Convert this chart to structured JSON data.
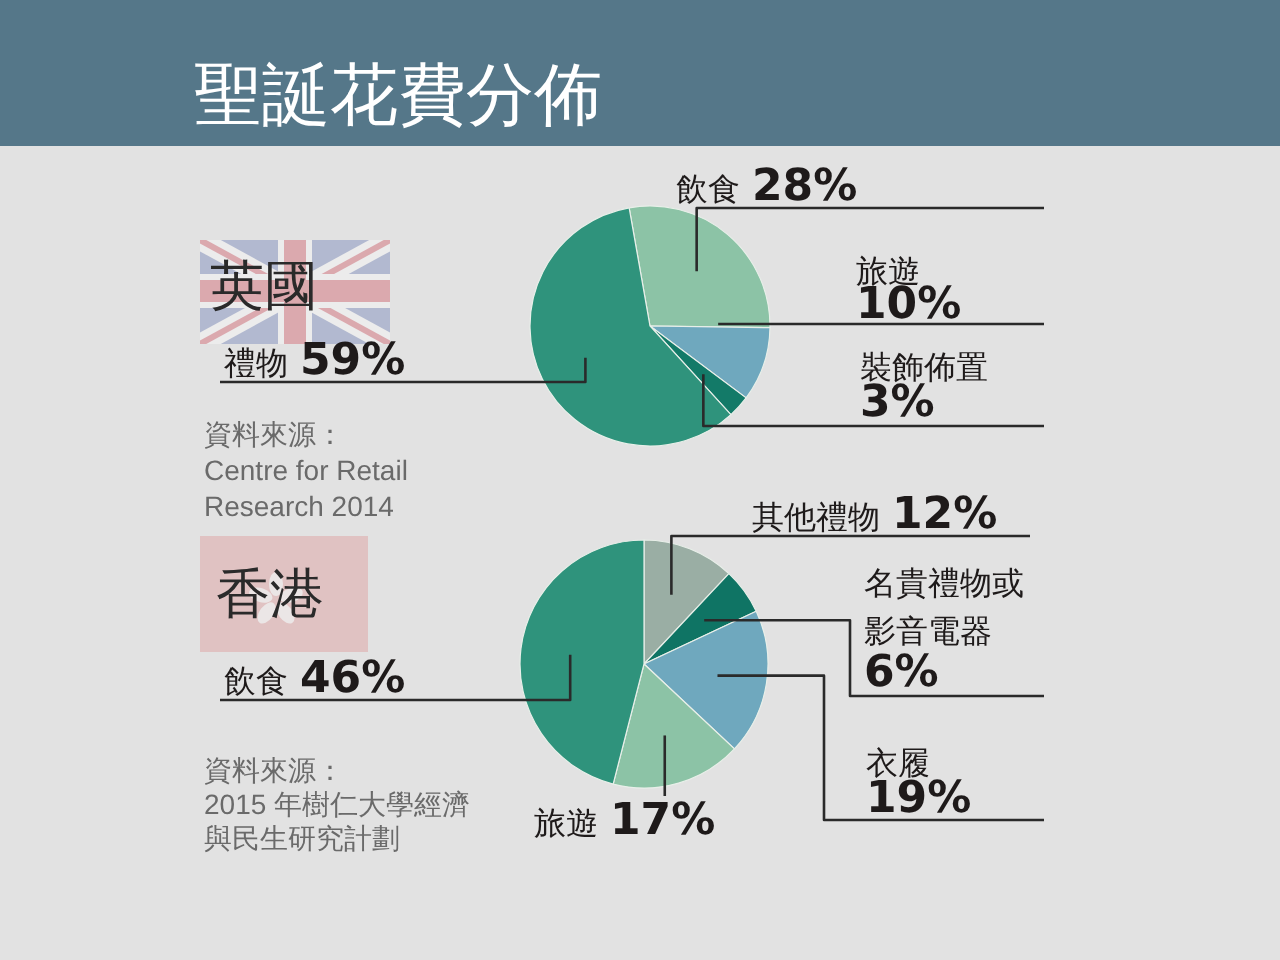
{
  "chart_data": [
    {
      "type": "pie",
      "title": "聖誕花費分佈",
      "subtitle": "英國",
      "categories": [
        "飲食",
        "旅遊",
        "裝飾佈置",
        "禮物"
      ],
      "values": [
        28,
        10,
        3,
        59
      ],
      "value_labels": [
        "28%",
        "10%",
        "3%",
        "59%"
      ],
      "colors": [
        "#8cc3a6",
        "#6fa8be",
        "#137a68",
        "#2f937c"
      ],
      "annotations": [
        "資料來源：Centre for Retail Research 2014"
      ]
    },
    {
      "type": "pie",
      "subtitle": "香港",
      "categories": [
        "其他禮物",
        "名貴禮物或影音電器",
        "衣履",
        "旅遊",
        "飲食"
      ],
      "values": [
        12,
        6,
        19,
        17,
        46
      ],
      "value_labels": [
        "12%",
        "6%",
        "19%",
        "17%",
        "46%"
      ],
      "colors": [
        "#9aaea4",
        "#0f7464",
        "#6fa8be",
        "#8cc3a6",
        "#2f937c"
      ],
      "annotations": [
        "資料來源：2015 年樹仁大學經濟與民生研究計劃"
      ]
    }
  ]
}
